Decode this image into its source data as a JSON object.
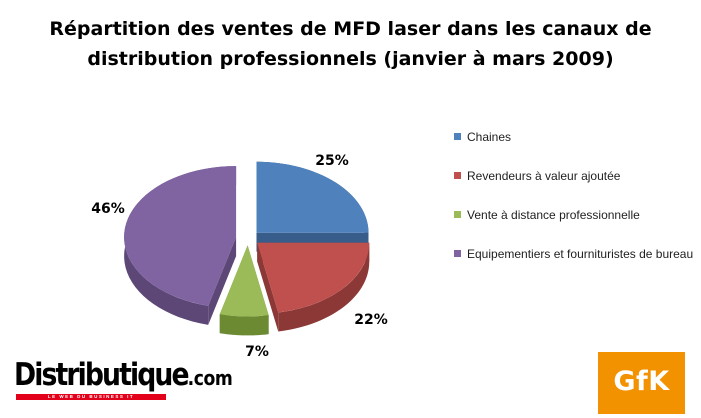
{
  "chart_data": {
    "type": "pie",
    "title_lines": [
      "Répartition des ventes de MFD laser dans les canaux de",
      "distribution professionnels (janvier à mars 2009)"
    ],
    "slices": [
      {
        "label": "Chaines",
        "value": 25,
        "value_label": "25%",
        "color": "#4f81bd",
        "side_color": "#385d8a"
      },
      {
        "label": "Revendeurs à valeur ajoutée",
        "value": 22,
        "value_label": "22%",
        "color": "#c0504d",
        "side_color": "#8c3836"
      },
      {
        "label": "Vente à distance professionnelle",
        "value": 7,
        "value_label": "7%",
        "color": "#9bbb59",
        "side_color": "#6b8a32"
      },
      {
        "label": "Equipementiers et fournituristes de bureau",
        "value": 46,
        "value_label": "46%",
        "color": "#8064a2",
        "side_color": "#5c4776"
      }
    ],
    "exploded": true,
    "three_d": true,
    "legend_position": "right"
  },
  "logos": {
    "distributique": {
      "name": "Distributique",
      "suffix": ".com",
      "tagline": "LE WEB DU BUSINESS IT"
    },
    "gfk": {
      "text": "GfK",
      "color": "#f39200"
    }
  }
}
